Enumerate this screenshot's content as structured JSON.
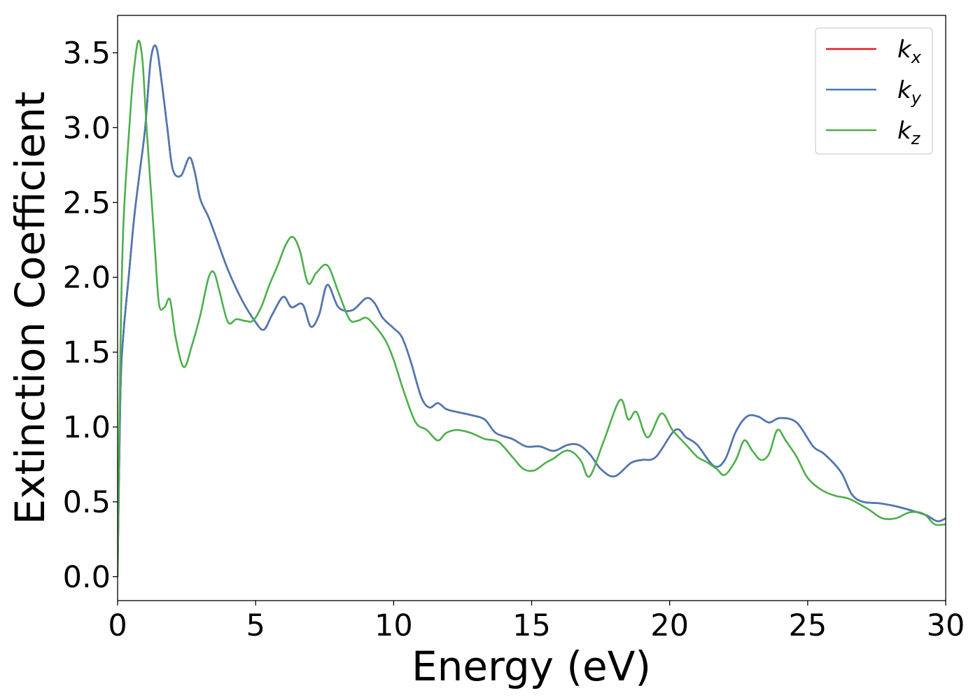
{
  "chart_data": {
    "type": "line",
    "xlabel": "Energy (eV)",
    "ylabel": "Extinction Coefficient",
    "xlim": [
      0,
      30
    ],
    "ylim": [
      -0.16,
      3.75
    ],
    "xticks": [
      0,
      5,
      10,
      15,
      20,
      25,
      30
    ],
    "xtick_labels": [
      "0",
      "5",
      "10",
      "15",
      "20",
      "25",
      "30"
    ],
    "yticks": [
      0.0,
      0.5,
      1.0,
      1.5,
      2.0,
      2.5,
      3.0,
      3.5
    ],
    "ytick_labels": [
      "0.0",
      "0.5",
      "1.0",
      "1.5",
      "2.0",
      "2.5",
      "3.0",
      "3.5"
    ],
    "grid": false,
    "legend_position": "top-right",
    "series": [
      {
        "name": "k",
        "subscript": "x",
        "color": "#e41a1c",
        "x": [
          0,
          0.1,
          0.2,
          0.4,
          0.6,
          0.8,
          1.0,
          1.2,
          1.4,
          1.6,
          1.8,
          2.0,
          2.3,
          2.6,
          2.8,
          3.0,
          3.3,
          3.6,
          4.0,
          4.5,
          5.0,
          5.3,
          5.6,
          6.0,
          6.3,
          6.7,
          7.0,
          7.3,
          7.6,
          8.0,
          8.5,
          9.0,
          9.3,
          9.6,
          10.0,
          10.3,
          10.6,
          11.0,
          11.3,
          11.6,
          11.9,
          12.3,
          12.8,
          13.3,
          13.7,
          14.3,
          14.8,
          15.3,
          15.8,
          16.3,
          16.7,
          17.1,
          17.5,
          18.0,
          18.6,
          19.0,
          19.5,
          20.2,
          20.6,
          21.0,
          21.6,
          22.0,
          22.4,
          22.8,
          23.2,
          23.6,
          24.0,
          24.6,
          25.2,
          25.6,
          26.2,
          26.6,
          27.0,
          27.6,
          28.2,
          28.8,
          29.3,
          29.7,
          30.0
        ],
        "y": [
          0,
          1.2,
          1.6,
          2.0,
          2.4,
          2.7,
          3.0,
          3.45,
          3.54,
          3.3,
          3.0,
          2.72,
          2.68,
          2.8,
          2.7,
          2.52,
          2.4,
          2.25,
          2.05,
          1.85,
          1.7,
          1.65,
          1.75,
          1.87,
          1.8,
          1.82,
          1.67,
          1.75,
          1.95,
          1.8,
          1.78,
          1.86,
          1.83,
          1.73,
          1.66,
          1.6,
          1.45,
          1.2,
          1.13,
          1.16,
          1.12,
          1.1,
          1.08,
          1.05,
          0.96,
          0.92,
          0.87,
          0.87,
          0.84,
          0.88,
          0.88,
          0.82,
          0.72,
          0.67,
          0.76,
          0.78,
          0.8,
          0.98,
          0.93,
          0.88,
          0.74,
          0.78,
          0.97,
          1.07,
          1.07,
          1.03,
          1.06,
          1.03,
          0.87,
          0.82,
          0.7,
          0.55,
          0.5,
          0.49,
          0.47,
          0.44,
          0.41,
          0.37,
          0.39
        ]
      },
      {
        "name": "k",
        "subscript": "y",
        "color": "#4a79b5",
        "x": [
          0,
          0.1,
          0.2,
          0.4,
          0.6,
          0.8,
          1.0,
          1.2,
          1.4,
          1.6,
          1.8,
          2.0,
          2.3,
          2.6,
          2.8,
          3.0,
          3.3,
          3.6,
          4.0,
          4.5,
          5.0,
          5.3,
          5.6,
          6.0,
          6.3,
          6.7,
          7.0,
          7.3,
          7.6,
          8.0,
          8.5,
          9.0,
          9.3,
          9.6,
          10.0,
          10.3,
          10.6,
          11.0,
          11.3,
          11.6,
          11.9,
          12.3,
          12.8,
          13.3,
          13.7,
          14.3,
          14.8,
          15.3,
          15.8,
          16.3,
          16.7,
          17.1,
          17.5,
          18.0,
          18.6,
          19.0,
          19.5,
          20.2,
          20.6,
          21.0,
          21.6,
          22.0,
          22.4,
          22.8,
          23.2,
          23.6,
          24.0,
          24.6,
          25.2,
          25.6,
          26.2,
          26.6,
          27.0,
          27.6,
          28.2,
          28.8,
          29.3,
          29.7,
          30.0
        ],
        "y": [
          0,
          1.2,
          1.6,
          2.0,
          2.4,
          2.7,
          3.0,
          3.45,
          3.54,
          3.3,
          3.0,
          2.72,
          2.68,
          2.8,
          2.7,
          2.52,
          2.4,
          2.25,
          2.05,
          1.85,
          1.7,
          1.65,
          1.75,
          1.87,
          1.8,
          1.82,
          1.67,
          1.75,
          1.95,
          1.8,
          1.78,
          1.86,
          1.83,
          1.73,
          1.66,
          1.6,
          1.45,
          1.2,
          1.13,
          1.16,
          1.12,
          1.1,
          1.08,
          1.05,
          0.96,
          0.92,
          0.87,
          0.87,
          0.84,
          0.88,
          0.88,
          0.82,
          0.72,
          0.67,
          0.76,
          0.78,
          0.8,
          0.98,
          0.93,
          0.88,
          0.74,
          0.78,
          0.97,
          1.07,
          1.07,
          1.03,
          1.06,
          1.03,
          0.87,
          0.82,
          0.7,
          0.55,
          0.5,
          0.49,
          0.47,
          0.44,
          0.41,
          0.37,
          0.39
        ]
      },
      {
        "name": "k",
        "subscript": "z",
        "color": "#4daf4a",
        "x": [
          0,
          0.1,
          0.2,
          0.35,
          0.5,
          0.6,
          0.75,
          0.9,
          1.05,
          1.2,
          1.35,
          1.5,
          1.7,
          1.9,
          2.1,
          2.4,
          2.7,
          3.0,
          3.3,
          3.5,
          3.7,
          4.0,
          4.3,
          4.6,
          4.9,
          5.2,
          5.5,
          5.8,
          6.1,
          6.35,
          6.6,
          6.9,
          7.2,
          7.6,
          8.0,
          8.4,
          8.7,
          9.0,
          9.3,
          9.7,
          10.0,
          10.4,
          10.8,
          11.2,
          11.6,
          11.9,
          12.3,
          12.8,
          13.3,
          13.8,
          14.3,
          14.7,
          15.1,
          15.5,
          15.8,
          16.2,
          16.5,
          16.8,
          17.1,
          17.6,
          18.2,
          18.5,
          18.8,
          19.2,
          19.7,
          20.1,
          20.6,
          21.0,
          21.3,
          21.7,
          22.0,
          22.4,
          22.7,
          23.0,
          23.3,
          23.6,
          23.9,
          24.2,
          24.6,
          25.0,
          25.5,
          26.0,
          26.5,
          27.2,
          27.7,
          28.2,
          28.7,
          29.2,
          29.6,
          30.0
        ],
        "y": [
          0,
          1.5,
          2.3,
          2.8,
          3.2,
          3.4,
          3.58,
          3.45,
          3.0,
          2.6,
          2.2,
          1.82,
          1.8,
          1.85,
          1.6,
          1.4,
          1.55,
          1.75,
          2.0,
          2.03,
          1.9,
          1.7,
          1.72,
          1.71,
          1.71,
          1.8,
          1.95,
          2.08,
          2.22,
          2.27,
          2.18,
          1.96,
          2.03,
          2.08,
          1.9,
          1.72,
          1.71,
          1.73,
          1.68,
          1.58,
          1.45,
          1.22,
          1.03,
          0.98,
          0.91,
          0.96,
          0.98,
          0.96,
          0.92,
          0.9,
          0.8,
          0.72,
          0.71,
          0.76,
          0.79,
          0.84,
          0.83,
          0.77,
          0.67,
          0.9,
          1.18,
          1.05,
          1.1,
          0.93,
          1.09,
          0.98,
          0.88,
          0.8,
          0.77,
          0.72,
          0.68,
          0.78,
          0.91,
          0.84,
          0.78,
          0.82,
          0.98,
          0.91,
          0.8,
          0.66,
          0.58,
          0.54,
          0.52,
          0.45,
          0.39,
          0.39,
          0.43,
          0.42,
          0.35,
          0.35
        ]
      }
    ]
  }
}
